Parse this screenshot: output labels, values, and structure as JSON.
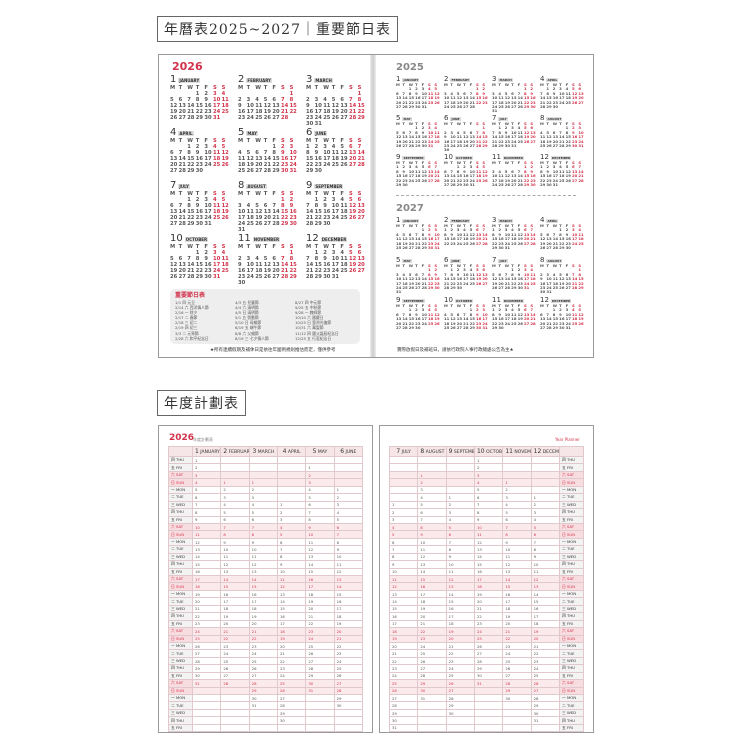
{
  "headings": {
    "calendar": "年曆表2025~2027｜重要節日表",
    "planner": "年度計劃表"
  },
  "years": {
    "main": "2026",
    "prev": "2025",
    "next": "2027"
  },
  "months": [
    {
      "num": "1",
      "name": "JANUARY"
    },
    {
      "num": "2",
      "name": "FEBRUARY"
    },
    {
      "num": "3",
      "name": "MARCH"
    },
    {
      "num": "4",
      "name": "APRIL"
    },
    {
      "num": "5",
      "name": "MAY"
    },
    {
      "num": "6",
      "name": "JUNE"
    },
    {
      "num": "7",
      "name": "JULY"
    },
    {
      "num": "8",
      "name": "AUGUST"
    },
    {
      "num": "9",
      "name": "SEPTEMBER"
    },
    {
      "num": "10",
      "name": "OCTOBER"
    },
    {
      "num": "11",
      "name": "NOVEMBER"
    },
    {
      "num": "12",
      "name": "DECEMBER"
    }
  ],
  "weekday_letters": [
    "M",
    "T",
    "W",
    "T",
    "F",
    "S",
    "S"
  ],
  "planner_weekdays": [
    "一 MON",
    "二 TUE",
    "三 WED",
    "四 THU",
    "五 FRI",
    "六 SAT",
    "日 SUN"
  ],
  "holidays": {
    "title": "重要節日表",
    "items": [
      "1/1 四 元旦",
      "2/14 六 西洋情人節",
      "2/16 一 除夕",
      "2/17 二 春節",
      "2/18 三 初二",
      "2/19 四 初三",
      "3/3 二 元宵節",
      "2/28 六 和平紀念日",
      "4/3 五 兒童節",
      "4/4 六 清明節",
      "4/5 日 清明節",
      "5/1 五 勞動節",
      "5/10 日 母親節",
      "6/19 五 端午節",
      "8/8 六 父親節",
      "8/19 三 七夕情人節",
      "8/27 四 中元節",
      "9/25 五 中秋節",
      "9/28 一 教師節",
      "10/10 六 國慶日",
      "10/25 日 臺灣光復節",
      "10/31 六 萬聖節",
      "11/12 四 國父誕辰紀念日",
      "12/25 五 行憲紀念日"
    ]
  },
  "notes": {
    "left": "★所有連續假期及補休日是依往年國例規則推估而定，僅供參考",
    "right": "實際放假日及補班日，請依行政院人事行政總處公告為主★"
  },
  "planner": {
    "subtitle": "年度計劃表",
    "corner": "Year Planner"
  },
  "colors": {
    "accent": "#d2334a",
    "weekend_bg": "#fbeaec"
  }
}
